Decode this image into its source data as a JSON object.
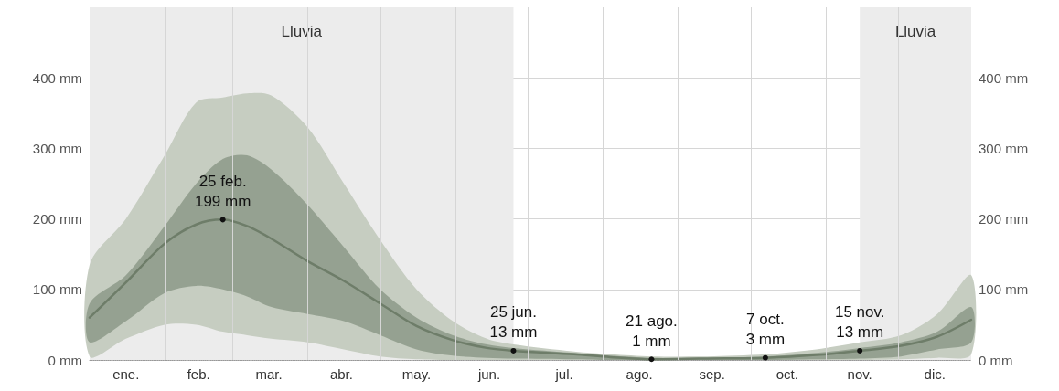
{
  "chart_data": {
    "type": "line",
    "x": [
      "--01-01",
      "--01-16",
      "--02-01",
      "--02-14",
      "--02-25",
      "--03-07",
      "--03-17",
      "--04-01",
      "--04-16",
      "--05-01",
      "--05-16",
      "--05-31",
      "--06-14",
      "--06-25",
      "--07-20",
      "--08-04",
      "--08-21",
      "--09-13",
      "--10-07",
      "--10-28",
      "--11-15",
      "--12-02",
      "--12-17",
      "--12-31"
    ],
    "series": [
      {
        "color": "#6e7d69",
        "values": [
          60,
          110,
          165,
          192,
          199,
          190,
          172,
          140,
          112,
          80,
          48,
          28,
          17,
          13,
          8,
          4,
          1,
          2,
          3,
          7,
          13,
          20,
          33,
          57
        ],
        "lower": [
          25,
          55,
          95,
          105,
          100,
          90,
          75,
          65,
          55,
          35,
          15,
          6,
          3,
          2,
          1,
          0,
          0,
          0,
          0,
          1,
          2,
          5,
          15,
          25
        ],
        "upper": [
          80,
          120,
          190,
          250,
          285,
          290,
          270,
          220,
          160,
          100,
          60,
          35,
          22,
          17,
          10,
          6,
          3,
          3,
          5,
          10,
          17,
          25,
          40,
          75
        ]
      },
      {
        "color": "#c6cdc1",
        "values": [
          null,
          null,
          null,
          null,
          null,
          null,
          null,
          null,
          null,
          null,
          null,
          null,
          null,
          null,
          null,
          null,
          null,
          null,
          null,
          null,
          null,
          null,
          null,
          null
        ],
        "lower": [
          5,
          30,
          50,
          50,
          40,
          35,
          30,
          25,
          15,
          5,
          1,
          0,
          0,
          0,
          0,
          0,
          0,
          0,
          0,
          0,
          0,
          1,
          3,
          8
        ],
        "upper": [
          135,
          200,
          290,
          365,
          372,
          378,
          375,
          330,
          250,
          170,
          100,
          55,
          30,
          22,
          12,
          8,
          5,
          5,
          8,
          15,
          25,
          35,
          65,
          120
        ]
      }
    ],
    "xlim": [
      "--01-01",
      "--12-31"
    ],
    "xticks": [
      {
        "value": "--01-16",
        "label": "ene."
      },
      {
        "value": "--02-01",
        "label": null
      },
      {
        "value": "--02-15",
        "label": "feb."
      },
      {
        "value": "--03-01",
        "label": null
      },
      {
        "value": "--03-16",
        "label": "mar."
      },
      {
        "value": "--04-01",
        "label": null
      },
      {
        "value": "--04-15",
        "label": "abr."
      },
      {
        "value": "--05-01",
        "label": null
      },
      {
        "value": "--05-16",
        "label": "may."
      },
      {
        "value": "--06-01",
        "label": null
      },
      {
        "value": "--06-15",
        "label": "jun."
      },
      {
        "value": "--07-01",
        "label": null
      },
      {
        "value": "--07-16",
        "label": "jul."
      },
      {
        "value": "--08-01",
        "label": null
      },
      {
        "value": "--08-16",
        "label": "ago."
      },
      {
        "value": "--09-01",
        "label": null
      },
      {
        "value": "--09-15",
        "label": "sep."
      },
      {
        "value": "--10-01",
        "label": null
      },
      {
        "value": "--10-16",
        "label": "oct."
      },
      {
        "value": "--11-01",
        "label": null
      },
      {
        "value": "--11-15",
        "label": "nov."
      },
      {
        "value": "--12-01",
        "label": null
      },
      {
        "value": "--12-16",
        "label": "dic."
      }
    ],
    "ylim": [
      0,
      500
    ],
    "yticks": [
      {
        "value": 0,
        "label": "0 mm"
      },
      {
        "value": 100,
        "label": "100 mm"
      },
      {
        "value": 200,
        "label": "200 mm"
      },
      {
        "value": 300,
        "label": "300 mm"
      },
      {
        "value": 400,
        "label": "400 mm"
      }
    ],
    "y2lim": [
      0,
      500
    ],
    "y2ticks": [
      {
        "value": 0,
        "label": "0 mm"
      },
      {
        "value": 100,
        "label": "100 mm"
      },
      {
        "value": 200,
        "label": "200 mm"
      },
      {
        "value": 300,
        "label": "300 mm"
      },
      {
        "value": 400,
        "label": "400 mm"
      }
    ],
    "bands": [
      {
        "axis": "x",
        "from": "--01-01",
        "to": "--06-25",
        "label": "Lluvia",
        "color": "#ececec"
      },
      {
        "axis": "x",
        "from": "--11-15",
        "to": "--12-31",
        "label": "Lluvia",
        "color": "#ececec"
      }
    ],
    "annotations": [
      {
        "text": "25 feb.\n199 mm",
        "x": "--02-25",
        "y": 199
      },
      {
        "text": "25 jun.\n13 mm",
        "x": "--06-25",
        "y": 13
      },
      {
        "text": "21 ago.\n1 mm",
        "x": "--08-21",
        "y": 1
      },
      {
        "text": "7 oct.\n3 mm",
        "x": "--10-07",
        "y": 3
      },
      {
        "text": "15 nov.\n13 mm",
        "x": "--11-15",
        "y": 13
      }
    ],
    "grid": true,
    "marker": "none",
    "line_style": "solid"
  }
}
